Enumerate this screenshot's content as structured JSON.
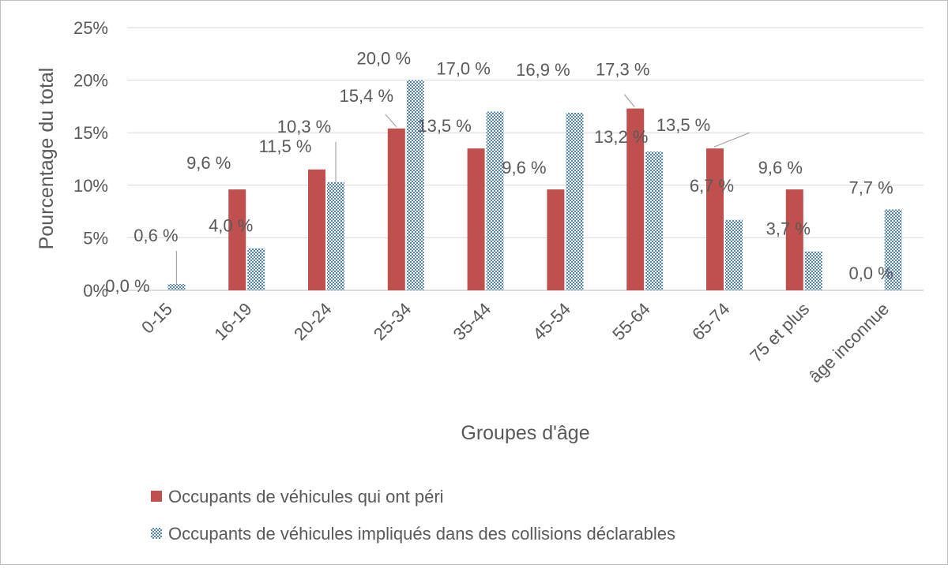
{
  "chart_data": {
    "type": "bar",
    "xlabel": "Groupes d'âge",
    "ylabel": "Pourcentage du total",
    "ylim": [
      0,
      25
    ],
    "yticks": [
      0,
      5,
      10,
      15,
      20,
      25
    ],
    "ytick_labels": [
      "0%",
      "5%",
      "10%",
      "15%",
      "20%",
      "25%"
    ],
    "grid": true,
    "legend_position": "bottom",
    "categories": [
      "0-15",
      "16-19",
      "20-24",
      "25-34",
      "35-44",
      "45-54",
      "55-64",
      "65-74",
      "75 et plus",
      "âge inconnue"
    ],
    "series": [
      {
        "name": "Occupants de véhicules qui ont péri",
        "color": "#c0504d",
        "pattern": "solid",
        "values": [
          0.0,
          9.6,
          11.5,
          15.4,
          13.5,
          9.6,
          17.3,
          13.5,
          9.6,
          0.0
        ],
        "labels": [
          "0,0 %",
          "9,6 %",
          "11,5 %",
          "15,4 %",
          "13,5 %",
          "9,6 %",
          "17,3 %",
          "13,5 %",
          "9,6 %",
          "0,0 %"
        ]
      },
      {
        "name": "Occupants de véhicules impliqués dans des collisions déclarables",
        "color": "#4f81bd",
        "pattern": "dotted",
        "values": [
          0.6,
          4.0,
          10.3,
          20.0,
          17.0,
          16.9,
          13.2,
          6.7,
          3.7,
          7.7
        ],
        "labels": [
          "0,6 %",
          "4,0 %",
          "10,3 %",
          "20,0 %",
          "17,0 %",
          "16,9 %",
          "13,2 %",
          "6,7 %",
          "3,7 %",
          "7,7 %"
        ]
      }
    ]
  }
}
